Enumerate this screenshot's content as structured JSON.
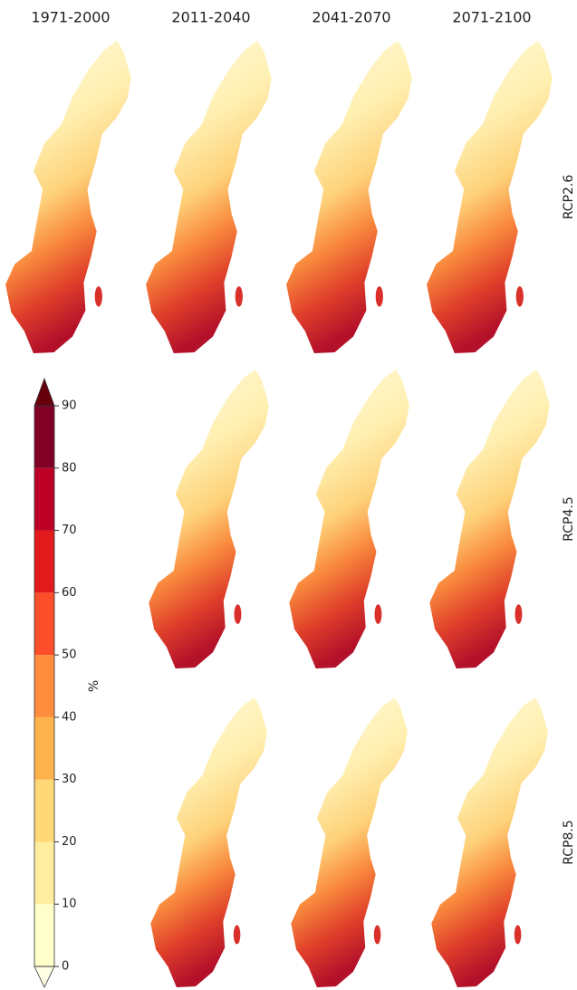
{
  "columns": [
    "1971-2000",
    "2011-2040",
    "2041-2070",
    "2071-2100"
  ],
  "rows": [
    "RCP2.6",
    "RCP4.5",
    "RCP8.5"
  ],
  "colorbar": {
    "label": "%",
    "ticks": [
      0,
      10,
      20,
      30,
      40,
      50,
      60,
      70,
      80,
      90
    ],
    "colors": [
      "#ffffcc",
      "#ffeda0",
      "#fed976",
      "#feb24c",
      "#fd8d3c",
      "#fc4e2a",
      "#e31a1c",
      "#bd0026",
      "#800026"
    ]
  }
}
